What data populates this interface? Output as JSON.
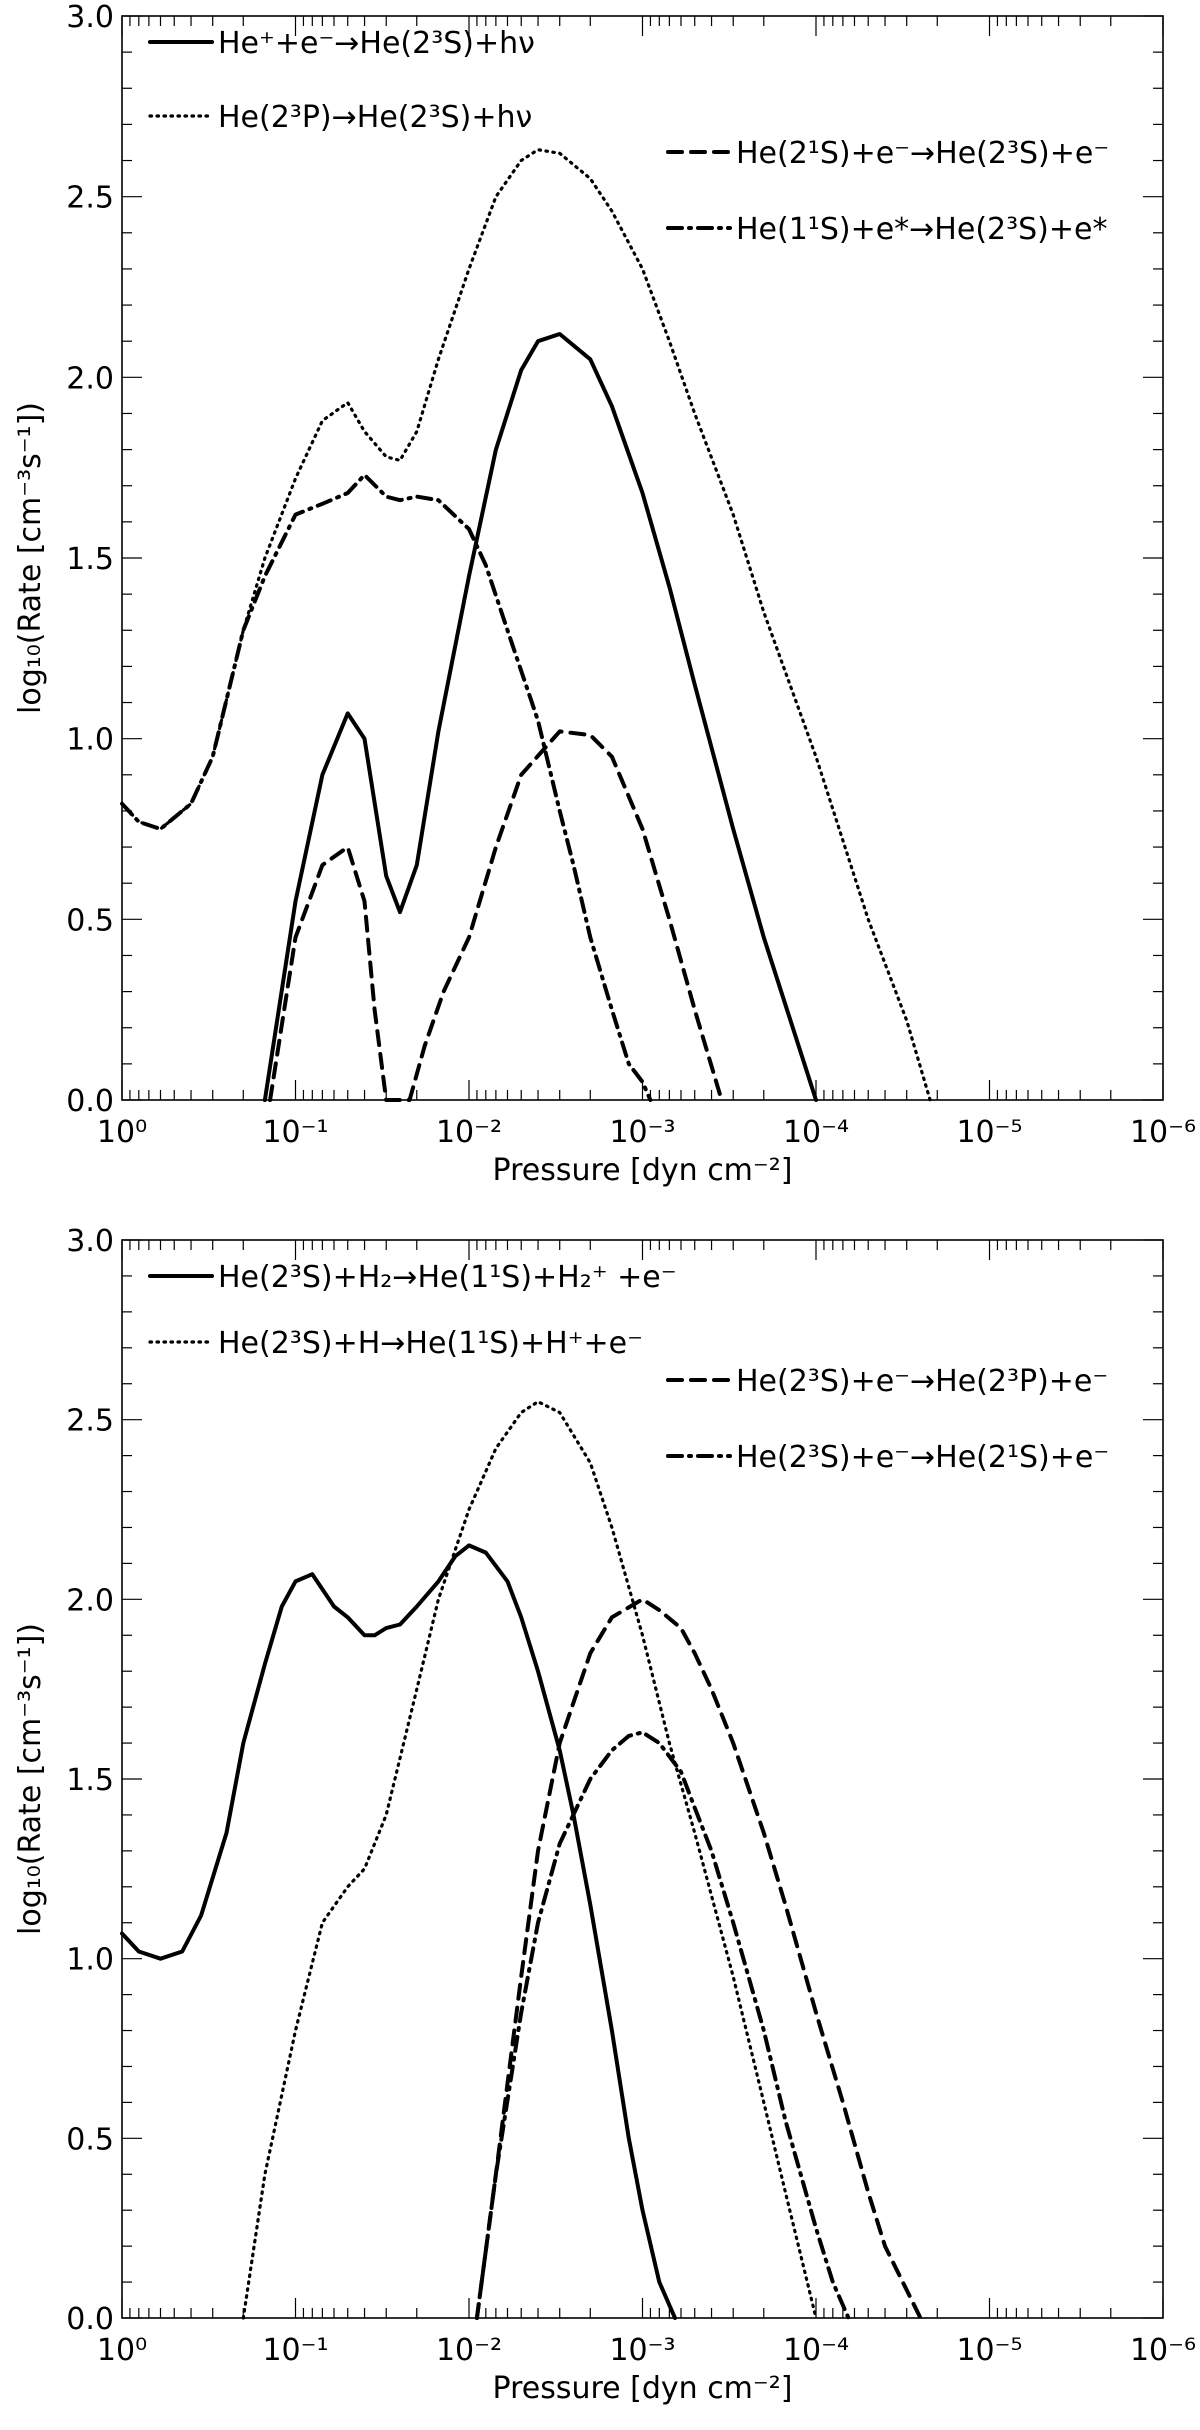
{
  "chart_data": [
    {
      "type": "line",
      "xlabel": "Pressure [dyn cm⁻²]",
      "ylabel": "log₁₀(Rate [cm⁻³s⁻¹])",
      "xscale": "log",
      "xlim": [
        1,
        1e-06
      ],
      "ylim": [
        0,
        3
      ],
      "xticks": [
        1,
        0.1,
        0.01,
        0.001,
        0.0001,
        1e-05,
        1e-06
      ],
      "xtick_labels": [
        "10⁰",
        "10⁻¹",
        "10⁻²",
        "10⁻³",
        "10⁻⁴",
        "10⁻⁵",
        "10⁻⁶"
      ],
      "yticks": [
        0,
        0.5,
        1,
        1.5,
        2,
        2.5,
        3
      ],
      "ytick_labels": [
        "0.0",
        "0.5",
        "1.0",
        "1.5",
        "2.0",
        "2.5",
        "3.0"
      ],
      "series": [
        {
          "name": "He⁺+e⁻→He(2³S)+hν",
          "style": "solid",
          "x": [
            0.15,
            0.1,
            0.07,
            0.05,
            0.04,
            0.03,
            0.025,
            0.02,
            0.015,
            0.01,
            0.007,
            0.005,
            0.004,
            0.003,
            0.002,
            0.0015,
            0.001,
            0.0007,
            0.0005,
            0.0003,
            0.0002,
            0.0001
          ],
          "y": [
            0.0,
            0.55,
            0.9,
            1.07,
            1.0,
            0.62,
            0.52,
            0.65,
            1.02,
            1.45,
            1.8,
            2.02,
            2.1,
            2.12,
            2.05,
            1.92,
            1.68,
            1.42,
            1.15,
            0.75,
            0.45,
            0.0
          ]
        },
        {
          "name": "He(2³P)→He(2³S)+hν",
          "style": "dotted",
          "x": [
            1,
            0.8,
            0.6,
            0.4,
            0.3,
            0.2,
            0.15,
            0.1,
            0.07,
            0.05,
            0.04,
            0.03,
            0.025,
            0.02,
            0.015,
            0.01,
            0.007,
            0.005,
            0.004,
            0.003,
            0.002,
            0.0015,
            0.001,
            0.0007,
            0.0005,
            0.0003,
            0.0002,
            0.0001,
            5e-05,
            3e-05,
            2.2e-05
          ],
          "y": [
            0.82,
            0.77,
            0.75,
            0.82,
            0.95,
            1.3,
            1.5,
            1.72,
            1.88,
            1.93,
            1.85,
            1.78,
            1.77,
            1.85,
            2.05,
            2.3,
            2.5,
            2.6,
            2.63,
            2.62,
            2.55,
            2.46,
            2.3,
            2.1,
            1.9,
            1.62,
            1.35,
            0.95,
            0.5,
            0.22,
            0.0
          ]
        },
        {
          "name": "He(2¹S)+e⁻→He(2³S)+e⁻",
          "style": "dashed",
          "x": [
            0.14,
            0.1,
            0.07,
            0.05,
            0.04,
            0.035,
            0.03,
            0.022,
            0.018,
            0.014,
            0.01,
            0.007,
            0.005,
            0.003,
            0.002,
            0.0015,
            0.001,
            0.0007,
            0.0005,
            0.00035
          ],
          "y": [
            0.0,
            0.45,
            0.65,
            0.7,
            0.55,
            0.25,
            0.0,
            0.0,
            0.15,
            0.3,
            0.45,
            0.7,
            0.9,
            1.02,
            1.01,
            0.95,
            0.75,
            0.5,
            0.25,
            0.0
          ]
        },
        {
          "name": "He(1¹S)+e*→He(2³S)+e*",
          "style": "dashdot",
          "x": [
            1,
            0.8,
            0.6,
            0.4,
            0.3,
            0.2,
            0.15,
            0.1,
            0.07,
            0.05,
            0.04,
            0.03,
            0.025,
            0.02,
            0.015,
            0.01,
            0.008,
            0.006,
            0.004,
            0.003,
            0.0025,
            0.002,
            0.0015,
            0.0012,
            0.001,
            0.0009
          ],
          "y": [
            0.82,
            0.77,
            0.75,
            0.82,
            0.95,
            1.3,
            1.45,
            1.62,
            1.65,
            1.68,
            1.73,
            1.67,
            1.66,
            1.67,
            1.66,
            1.58,
            1.48,
            1.3,
            1.05,
            0.8,
            0.65,
            0.45,
            0.25,
            0.1,
            0.05,
            0.0
          ]
        }
      ]
    },
    {
      "type": "line",
      "xlabel": "Pressure [dyn cm⁻²]",
      "ylabel": "log₁₀(Rate [cm⁻³s⁻¹])",
      "xscale": "log",
      "xlim": [
        1,
        1e-06
      ],
      "ylim": [
        0,
        3
      ],
      "xticks": [
        1,
        0.1,
        0.01,
        0.001,
        0.0001,
        1e-05,
        1e-06
      ],
      "xtick_labels": [
        "10⁰",
        "10⁻¹",
        "10⁻²",
        "10⁻³",
        "10⁻⁴",
        "10⁻⁵",
        "10⁻⁶"
      ],
      "yticks": [
        0,
        0.5,
        1,
        1.5,
        2,
        2.5,
        3
      ],
      "ytick_labels": [
        "0.0",
        "0.5",
        "1.0",
        "1.5",
        "2.0",
        "2.5",
        "3.0"
      ],
      "series": [
        {
          "name": "He(2³S)+H₂→He(1¹S)+H₂⁺ +e⁻",
          "style": "solid",
          "x": [
            1,
            0.8,
            0.6,
            0.45,
            0.35,
            0.25,
            0.2,
            0.15,
            0.12,
            0.1,
            0.08,
            0.06,
            0.05,
            0.04,
            0.035,
            0.03,
            0.025,
            0.02,
            0.015,
            0.012,
            0.01,
            0.008,
            0.006,
            0.005,
            0.004,
            0.003,
            0.0025,
            0.002,
            0.0015,
            0.0012,
            0.001,
            0.0008,
            0.00065
          ],
          "y": [
            1.07,
            1.02,
            1.0,
            1.02,
            1.12,
            1.35,
            1.6,
            1.82,
            1.98,
            2.05,
            2.07,
            1.98,
            1.95,
            1.9,
            1.9,
            1.92,
            1.93,
            1.98,
            2.05,
            2.12,
            2.15,
            2.13,
            2.05,
            1.95,
            1.8,
            1.58,
            1.4,
            1.15,
            0.8,
            0.5,
            0.3,
            0.1,
            0.0
          ]
        },
        {
          "name": "He(2³S)+H→He(1¹S)+H⁺+e⁻",
          "style": "dotted",
          "x": [
            0.2,
            0.15,
            0.1,
            0.07,
            0.05,
            0.04,
            0.03,
            0.02,
            0.015,
            0.01,
            0.007,
            0.005,
            0.004,
            0.003,
            0.002,
            0.0015,
            0.001,
            0.0007,
            0.0005,
            0.0003,
            0.0002,
            0.00015,
            0.0001
          ],
          "y": [
            0.0,
            0.4,
            0.8,
            1.1,
            1.2,
            1.25,
            1.4,
            1.75,
            2.0,
            2.25,
            2.42,
            2.52,
            2.55,
            2.52,
            2.38,
            2.2,
            1.9,
            1.6,
            1.35,
            0.95,
            0.6,
            0.35,
            0.0
          ]
        },
        {
          "name": "He(2³S)+e⁻→He(2³P)+e⁻",
          "style": "dashed",
          "x": [
            0.009,
            0.007,
            0.005,
            0.004,
            0.003,
            0.002,
            0.0015,
            0.001,
            0.0008,
            0.0006,
            0.0005,
            0.0004,
            0.0003,
            0.0002,
            0.00015,
            0.0001,
            7e-05,
            5e-05,
            4e-05,
            2.5e-05
          ],
          "y": [
            0.0,
            0.4,
            0.95,
            1.3,
            1.6,
            1.85,
            1.95,
            2.0,
            1.97,
            1.92,
            1.85,
            1.75,
            1.6,
            1.35,
            1.15,
            0.85,
            0.6,
            0.35,
            0.2,
            0.0
          ]
        },
        {
          "name": "He(2³S)+e⁻→He(2¹S)+e⁻",
          "style": "dashdot",
          "x": [
            0.009,
            0.007,
            0.005,
            0.004,
            0.003,
            0.002,
            0.0015,
            0.0012,
            0.001,
            0.0008,
            0.0006,
            0.0005,
            0.0004,
            0.0003,
            0.0002,
            0.00015,
            0.0001,
            8e-05,
            6.5e-05
          ],
          "y": [
            0.0,
            0.4,
            0.85,
            1.1,
            1.32,
            1.5,
            1.58,
            1.62,
            1.63,
            1.6,
            1.52,
            1.42,
            1.3,
            1.1,
            0.8,
            0.55,
            0.25,
            0.1,
            0.0
          ]
        }
      ]
    }
  ]
}
